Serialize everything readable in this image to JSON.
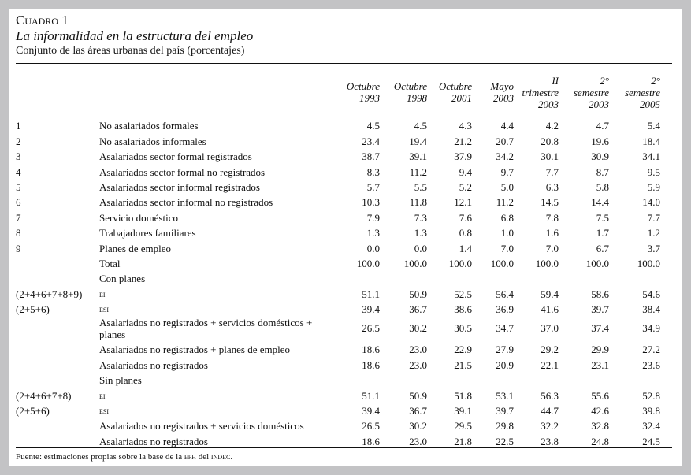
{
  "header": {
    "cuadro": "Cuadro 1",
    "title": "La informalidad en la estructura del empleo",
    "subtitle": "Conjunto de las áreas urbanas del país (porcentajes)"
  },
  "columns": [
    [
      "Octubre",
      "1993"
    ],
    [
      "Octubre",
      "1998"
    ],
    [
      "Octubre",
      "2001"
    ],
    [
      "Mayo",
      "2003"
    ],
    [
      "II",
      "trimestre",
      "2003"
    ],
    [
      "2°",
      "semestre",
      "2003"
    ],
    [
      "2°",
      "semestre",
      "2005"
    ]
  ],
  "rows": [
    {
      "code": "1",
      "label": "No asalariados formales",
      "values": [
        "4.5",
        "4.5",
        "4.3",
        "4.4",
        "4.2",
        "4.7",
        "5.4"
      ]
    },
    {
      "code": "2",
      "label": "No asalariados informales",
      "values": [
        "23.4",
        "19.4",
        "21.2",
        "20.7",
        "20.8",
        "19.6",
        "18.4"
      ]
    },
    {
      "code": "3",
      "label": "Asalariados sector formal registrados",
      "values": [
        "38.7",
        "39.1",
        "37.9",
        "34.2",
        "30.1",
        "30.9",
        "34.1"
      ]
    },
    {
      "code": "4",
      "label": "Asalariados sector formal no registrados",
      "values": [
        "8.3",
        "11.2",
        "9.4",
        "9.7",
        "7.7",
        "8.7",
        "9.5"
      ]
    },
    {
      "code": "5",
      "label": "Asalariados sector informal registrados",
      "values": [
        "5.7",
        "5.5",
        "5.2",
        "5.0",
        "6.3",
        "5.8",
        "5.9"
      ]
    },
    {
      "code": "6",
      "label": "Asalariados sector informal no registrados",
      "values": [
        "10.3",
        "11.8",
        "12.1",
        "11.2",
        "14.5",
        "14.4",
        "14.0"
      ]
    },
    {
      "code": "7",
      "label": "Servicio doméstico",
      "values": [
        "7.9",
        "7.3",
        "7.6",
        "6.8",
        "7.8",
        "7.5",
        "7.7"
      ]
    },
    {
      "code": "8",
      "label": "Trabajadores familiares",
      "values": [
        "1.3",
        "1.3",
        "0.8",
        "1.0",
        "1.6",
        "1.7",
        "1.2"
      ]
    },
    {
      "code": "9",
      "label": "Planes de empleo",
      "values": [
        "0.0",
        "0.0",
        "1.4",
        "7.0",
        "7.0",
        "6.7",
        "3.7"
      ]
    },
    {
      "code": "",
      "label": "Total",
      "values": [
        "100.0",
        "100.0",
        "100.0",
        "100.0",
        "100.0",
        "100.0",
        "100.0"
      ]
    },
    {
      "code": "",
      "label": "Con planes",
      "values": [
        "",
        "",
        "",
        "",
        "",
        "",
        ""
      ]
    },
    {
      "code": "(2+4+6+7+8+9)",
      "label": "EI",
      "sc": true,
      "values": [
        "51.1",
        "50.9",
        "52.5",
        "56.4",
        "59.4",
        "58.6",
        "54.6"
      ]
    },
    {
      "code": "(2+5+6)",
      "label": "ESI",
      "sc": true,
      "values": [
        "39.4",
        "36.7",
        "38.6",
        "36.9",
        "41.6",
        "39.7",
        "38.4"
      ]
    },
    {
      "code": "",
      "label": "Asalariados no registrados + servicios domésticos + planes",
      "tall": true,
      "values": [
        "26.5",
        "30.2",
        "30.5",
        "34.7",
        "37.0",
        "37.4",
        "34.9"
      ]
    },
    {
      "code": "",
      "label": "Asalariados no registrados + planes de empleo",
      "values": [
        "18.6",
        "23.0",
        "22.9",
        "27.9",
        "29.2",
        "29.9",
        "27.2"
      ]
    },
    {
      "code": "",
      "label": "Asalariados no registrados",
      "values": [
        "18.6",
        "23.0",
        "21.5",
        "20.9",
        "22.1",
        "23.1",
        "23.6"
      ]
    },
    {
      "code": "",
      "label": "Sin planes",
      "values": [
        "",
        "",
        "",
        "",
        "",
        "",
        ""
      ]
    },
    {
      "code": "(2+4+6+7+8)",
      "label": "EI",
      "sc": true,
      "values": [
        "51.1",
        "50.9",
        "51.8",
        "53.1",
        "56.3",
        "55.6",
        "52.8"
      ]
    },
    {
      "code": "(2+5+6)",
      "label": "ESI",
      "sc": true,
      "values": [
        "39.4",
        "36.7",
        "39.1",
        "39.7",
        "44.7",
        "42.6",
        "39.8"
      ]
    },
    {
      "code": "",
      "label": "Asalariados no registrados + servicios domésticos",
      "values": [
        "26.5",
        "30.2",
        "29.5",
        "29.8",
        "32.2",
        "32.8",
        "32.4"
      ]
    },
    {
      "code": "",
      "label": "Asalariados no registrados",
      "values": [
        "18.6",
        "23.0",
        "21.8",
        "22.5",
        "23.8",
        "24.8",
        "24.5"
      ]
    }
  ],
  "footnote": {
    "pre": "Fuente: estimaciones propias sobre la base de la ",
    "eph": "EPH",
    "mid": " del ",
    "indec": "INDEC",
    "post": "."
  }
}
